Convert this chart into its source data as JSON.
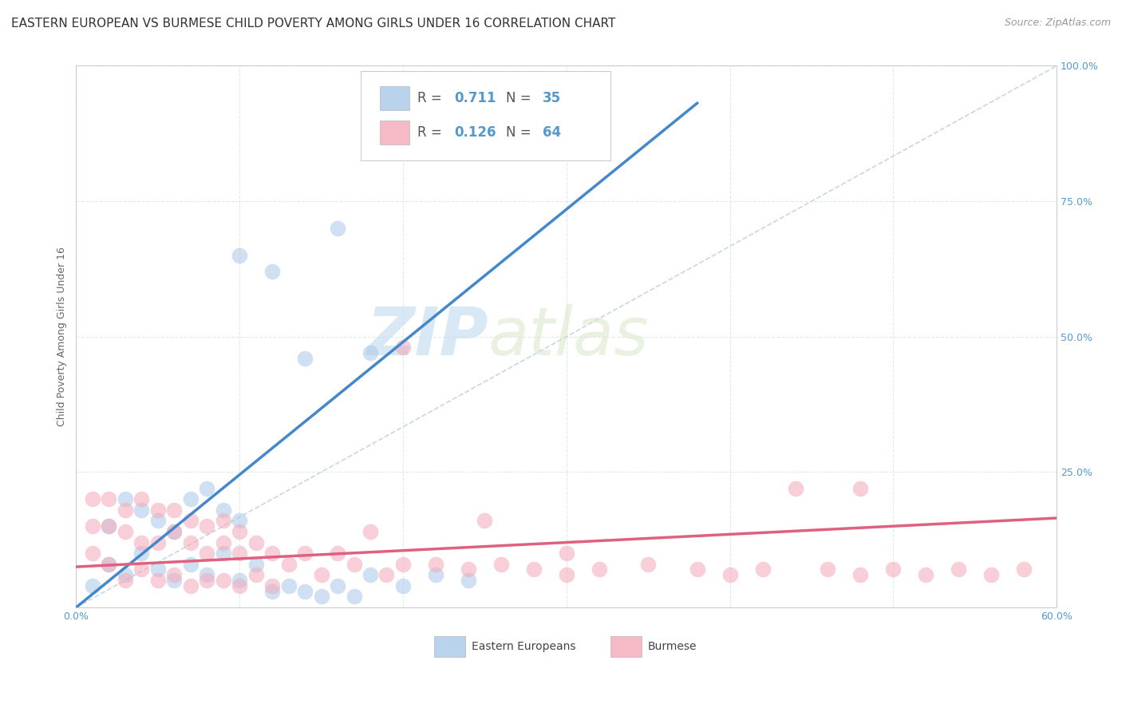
{
  "title": "EASTERN EUROPEAN VS BURMESE CHILD POVERTY AMONG GIRLS UNDER 16 CORRELATION CHART",
  "source": "Source: ZipAtlas.com",
  "ylabel": "Child Poverty Among Girls Under 16",
  "xlim": [
    0.0,
    0.6
  ],
  "ylim": [
    0.0,
    1.0
  ],
  "xticks": [
    0.0,
    0.1,
    0.2,
    0.3,
    0.4,
    0.5,
    0.6
  ],
  "xtick_labels": [
    "0.0%",
    "",
    "",
    "",
    "",
    "",
    "60.0%"
  ],
  "yticks": [
    0.0,
    0.25,
    0.5,
    0.75,
    1.0
  ],
  "ytick_labels": [
    "",
    "25.0%",
    "50.0%",
    "75.0%",
    "100.0%"
  ],
  "eastern_R": 0.711,
  "eastern_N": 35,
  "burmese_R": 0.126,
  "burmese_N": 64,
  "eastern_color": "#a8c8e8",
  "burmese_color": "#f4a8b8",
  "eastern_line_color": "#4488cc",
  "burmese_line_color": "#e06080",
  "ref_line_color": "#bbccdd",
  "background_color": "#ffffff",
  "grid_color": "#e0e8f0",
  "tick_color": "#5599cc",
  "title_fontsize": 11,
  "source_fontsize": 9,
  "axis_label_fontsize": 9,
  "tick_fontsize": 9,
  "legend_fontsize": 12,
  "watermark_zip": "ZIP",
  "watermark_atlas": "atlas",
  "eastern_x": [
    0.01,
    0.02,
    0.02,
    0.03,
    0.03,
    0.04,
    0.04,
    0.05,
    0.05,
    0.06,
    0.06,
    0.07,
    0.07,
    0.08,
    0.08,
    0.09,
    0.09,
    0.1,
    0.1,
    0.11,
    0.12,
    0.13,
    0.14,
    0.15,
    0.16,
    0.17,
    0.18,
    0.2,
    0.22,
    0.24,
    0.1,
    0.12,
    0.14,
    0.16,
    0.18
  ],
  "eastern_y": [
    0.04,
    0.08,
    0.15,
    0.06,
    0.2,
    0.1,
    0.18,
    0.07,
    0.16,
    0.05,
    0.14,
    0.08,
    0.2,
    0.06,
    0.22,
    0.1,
    0.18,
    0.05,
    0.16,
    0.08,
    0.03,
    0.04,
    0.03,
    0.02,
    0.04,
    0.02,
    0.06,
    0.04,
    0.06,
    0.05,
    0.65,
    0.62,
    0.46,
    0.7,
    0.47
  ],
  "burmese_x": [
    0.01,
    0.01,
    0.01,
    0.02,
    0.02,
    0.02,
    0.03,
    0.03,
    0.03,
    0.04,
    0.04,
    0.04,
    0.05,
    0.05,
    0.05,
    0.06,
    0.06,
    0.06,
    0.07,
    0.07,
    0.07,
    0.08,
    0.08,
    0.08,
    0.09,
    0.09,
    0.09,
    0.1,
    0.1,
    0.1,
    0.11,
    0.11,
    0.12,
    0.12,
    0.13,
    0.14,
    0.15,
    0.16,
    0.17,
    0.18,
    0.19,
    0.2,
    0.22,
    0.24,
    0.26,
    0.28,
    0.3,
    0.32,
    0.35,
    0.38,
    0.4,
    0.42,
    0.44,
    0.46,
    0.48,
    0.5,
    0.52,
    0.54,
    0.56,
    0.58,
    0.2,
    0.25,
    0.3,
    0.48
  ],
  "burmese_y": [
    0.1,
    0.15,
    0.2,
    0.08,
    0.15,
    0.2,
    0.05,
    0.14,
    0.18,
    0.07,
    0.12,
    0.2,
    0.05,
    0.12,
    0.18,
    0.06,
    0.14,
    0.18,
    0.04,
    0.12,
    0.16,
    0.05,
    0.1,
    0.15,
    0.05,
    0.12,
    0.16,
    0.04,
    0.1,
    0.14,
    0.06,
    0.12,
    0.04,
    0.1,
    0.08,
    0.1,
    0.06,
    0.1,
    0.08,
    0.14,
    0.06,
    0.08,
    0.08,
    0.07,
    0.08,
    0.07,
    0.06,
    0.07,
    0.08,
    0.07,
    0.06,
    0.07,
    0.22,
    0.07,
    0.06,
    0.07,
    0.06,
    0.07,
    0.06,
    0.07,
    0.48,
    0.16,
    0.1,
    0.22
  ]
}
